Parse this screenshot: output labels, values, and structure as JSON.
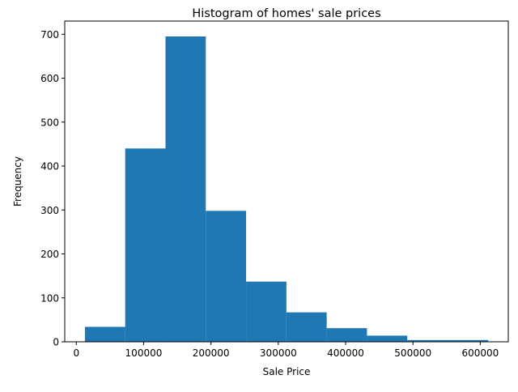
{
  "chart_data": {
    "type": "histogram",
    "title": "Histogram of homes' sale prices",
    "xlabel": "Sale Price",
    "ylabel": "Frequency",
    "bins": [
      {
        "x0": 12789,
        "x1": 72640,
        "count": 34
      },
      {
        "x0": 72640,
        "x1": 132490,
        "count": 440
      },
      {
        "x0": 132490,
        "x1": 192340,
        "count": 695
      },
      {
        "x0": 192340,
        "x1": 252190,
        "count": 298
      },
      {
        "x0": 252190,
        "x1": 312040,
        "count": 137
      },
      {
        "x0": 312040,
        "x1": 371890,
        "count": 67
      },
      {
        "x0": 371890,
        "x1": 431740,
        "count": 31
      },
      {
        "x0": 431740,
        "x1": 491590,
        "count": 14
      },
      {
        "x0": 491590,
        "x1": 551440,
        "count": 4
      },
      {
        "x0": 551440,
        "x1": 611657,
        "count": 4
      }
    ],
    "xlim": [
      -17154,
      641600
    ],
    "ylim": [
      0,
      730
    ],
    "xticks": [
      0,
      100000,
      200000,
      300000,
      400000,
      500000,
      600000
    ],
    "xtick_labels": [
      "0",
      "100000",
      "200000",
      "300000",
      "400000",
      "500000",
      "600000"
    ],
    "yticks": [
      0,
      100,
      200,
      300,
      400,
      500,
      600,
      700
    ],
    "ytick_labels": [
      "0",
      "100",
      "200",
      "300",
      "400",
      "500",
      "600",
      "700"
    ],
    "bar_color": "#1f77b4",
    "grid": false,
    "legend": false
  }
}
